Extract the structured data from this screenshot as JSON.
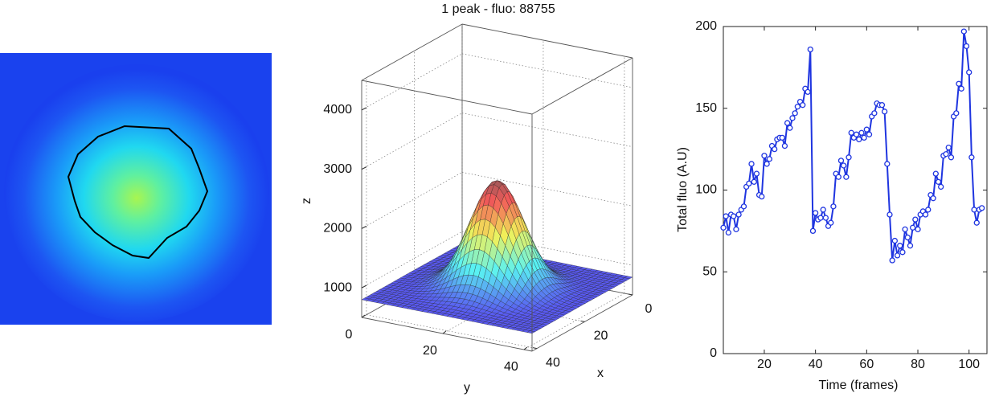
{
  "chart_data": [
    {
      "type": "surface3d",
      "title": "1 peak - fluo: 88755",
      "xlabel": "x",
      "ylabel": "y",
      "zlabel": "z",
      "xlim": [
        0,
        42
      ],
      "ylim": [
        0,
        42
      ],
      "zlim": [
        500,
        4500
      ],
      "xticks": [
        0,
        20,
        40
      ],
      "yticks": [
        0,
        20,
        40
      ],
      "zticks": [
        1000,
        2000,
        3000,
        4000
      ],
      "grid": true
    },
    {
      "type": "line",
      "xlabel": "Time (frames)",
      "ylabel": "Total fluo (A.U)",
      "xlim": [
        4,
        107
      ],
      "ylim": [
        0,
        200
      ],
      "xticks": [
        20,
        40,
        60,
        80,
        100
      ],
      "yticks": [
        0,
        50,
        100,
        150,
        200
      ],
      "color": "#1f35e0",
      "marker": "o",
      "x": [
        4,
        5,
        6,
        7,
        8,
        9,
        10,
        11,
        12,
        13,
        14,
        15,
        16,
        17,
        18,
        19,
        20,
        21,
        22,
        23,
        24,
        25,
        26,
        27,
        28,
        29,
        30,
        31,
        32,
        33,
        34,
        35,
        36,
        37,
        38,
        39,
        40,
        41,
        42,
        43,
        44,
        45,
        46,
        47,
        48,
        49,
        50,
        51,
        52,
        53,
        54,
        55,
        56,
        57,
        58,
        59,
        60,
        61,
        62,
        63,
        64,
        65,
        66,
        67,
        68,
        69,
        70,
        71,
        72,
        73,
        74,
        75,
        76,
        77,
        78,
        79,
        80,
        81,
        82,
        83,
        84,
        85,
        86,
        87,
        88,
        89,
        90,
        91,
        92,
        93,
        94,
        95,
        96,
        97,
        98,
        99,
        100,
        101,
        102,
        103,
        104,
        105
      ],
      "values": [
        77,
        84,
        74,
        85,
        84,
        76,
        85,
        88,
        90,
        102,
        104,
        116,
        105,
        110,
        97,
        96,
        121,
        116,
        119,
        127,
        125,
        131,
        132,
        132,
        127,
        141,
        138,
        144,
        147,
        151,
        154,
        152,
        162,
        160,
        186,
        75,
        86,
        82,
        83,
        88,
        83,
        78,
        80,
        90,
        110,
        108,
        118,
        115,
        108,
        120,
        135,
        132,
        134,
        131,
        135,
        132,
        137,
        134,
        145,
        147,
        153,
        152,
        152,
        148,
        116,
        85,
        57,
        69,
        60,
        66,
        62,
        76,
        71,
        66,
        77,
        82,
        76,
        85,
        87,
        85,
        88,
        97,
        95,
        110,
        105,
        102,
        121,
        122,
        126,
        120,
        145,
        147,
        165,
        162,
        197,
        188,
        172,
        120,
        88,
        80,
        88,
        89
      ]
    }
  ]
}
